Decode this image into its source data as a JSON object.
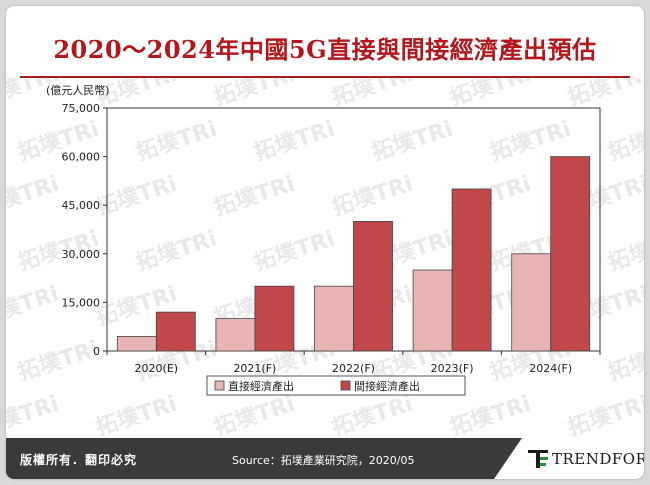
{
  "header": {
    "title": "2020～2024年中國5G直接與間接經濟產出預估"
  },
  "watermark": {
    "text": "拓墣TRi"
  },
  "chart_data": {
    "type": "bar",
    "unit_label": "(億元人民幣)",
    "categories": [
      "2020(E)",
      "2021(F)",
      "2022(F)",
      "2023(F)",
      "2024(F)"
    ],
    "series": [
      {
        "name": "直接經濟產出",
        "values": [
          4500,
          10000,
          20000,
          25000,
          30000
        ],
        "color": "#e8b4b3"
      },
      {
        "name": "間接經濟產出",
        "values": [
          12000,
          20000,
          40000,
          50000,
          60000
        ],
        "color": "#c0474a"
      }
    ],
    "yticks": [
      "0",
      "15,000",
      "30,000",
      "45,000",
      "60,000",
      "75,000"
    ],
    "ylim": [
      0,
      75000
    ],
    "grid": false,
    "legend_position": "bottom"
  },
  "footer": {
    "copyright": "版權所有．翻印必究",
    "source": "Source：拓墣產業研究院，2020/05",
    "brand": "TRENDFORCE"
  }
}
